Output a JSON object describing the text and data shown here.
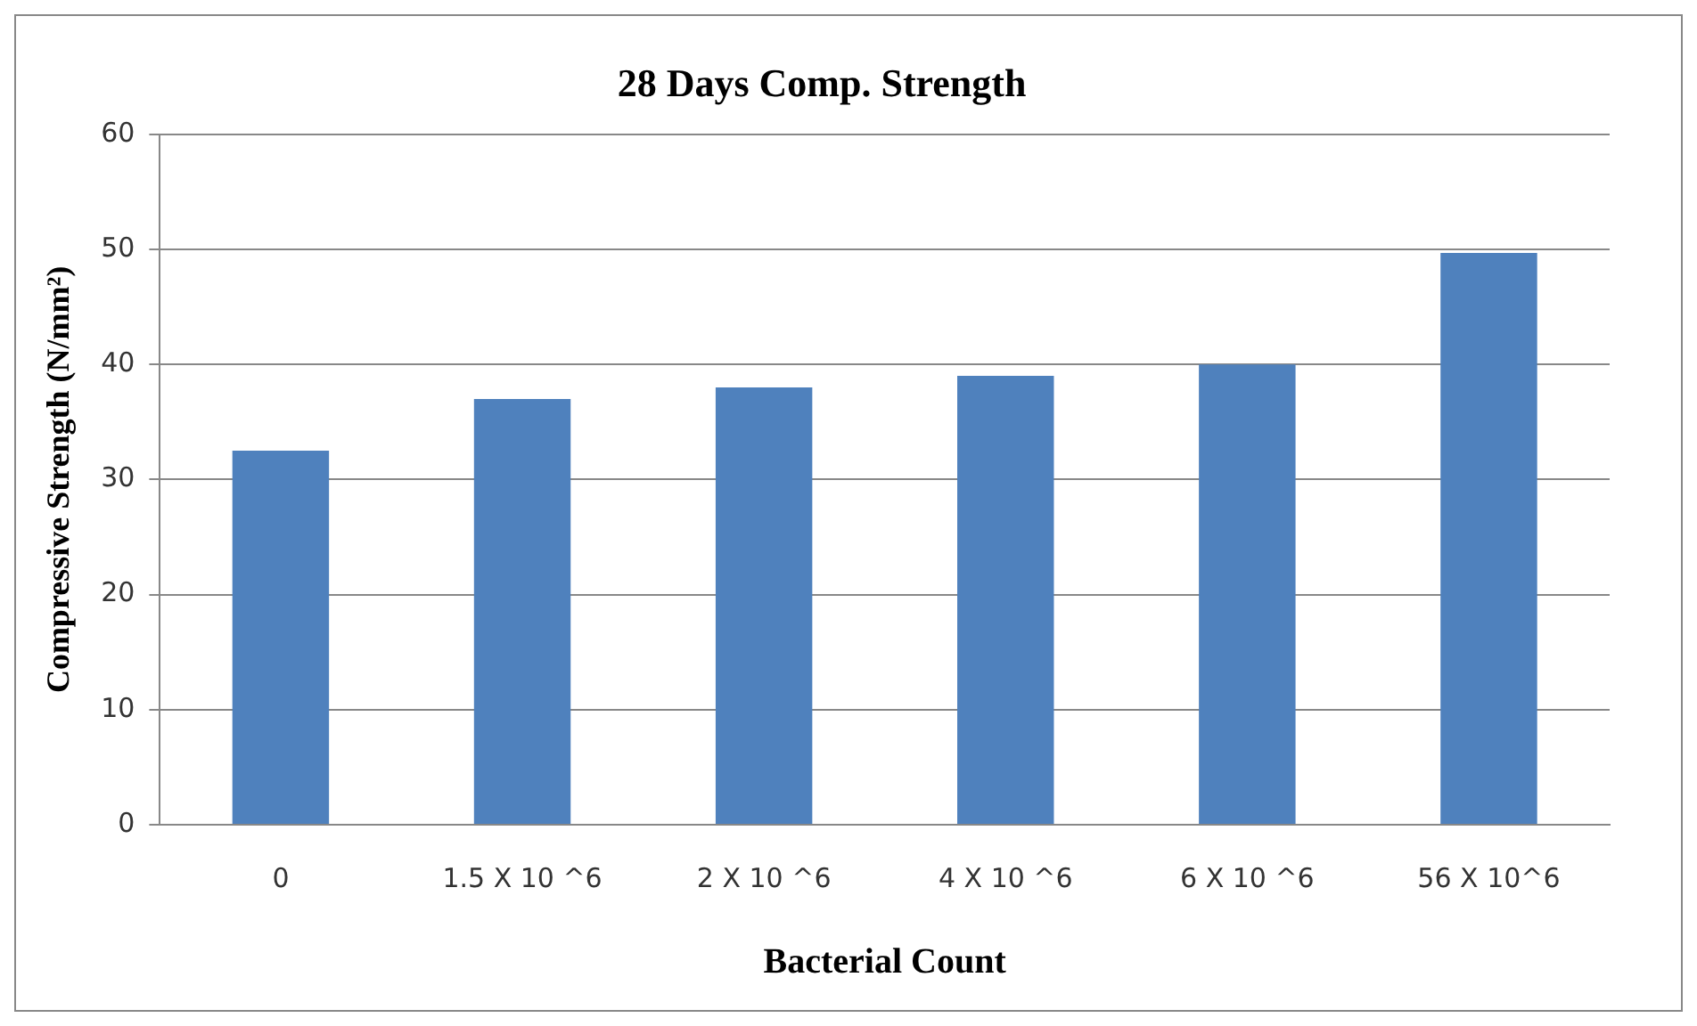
{
  "chart_data": {
    "type": "bar",
    "title": "28 Days Comp. Strength",
    "xlabel": "Bacterial Count",
    "ylabel": "Compressive Strength (N/mm²)",
    "categories": [
      "0",
      "1.5 X 10 ^6",
      "2 X 10 ^6",
      "4 X 10 ^6",
      "6 X 10 ^6",
      "56 X 10^6"
    ],
    "values": [
      32.5,
      37,
      38,
      39,
      40,
      49.7
    ],
    "color": "#4f81bd",
    "ylim": [
      0,
      60
    ],
    "yticks": [
      0,
      10,
      20,
      30,
      40,
      50,
      60
    ],
    "grid": "y",
    "legend": false
  }
}
